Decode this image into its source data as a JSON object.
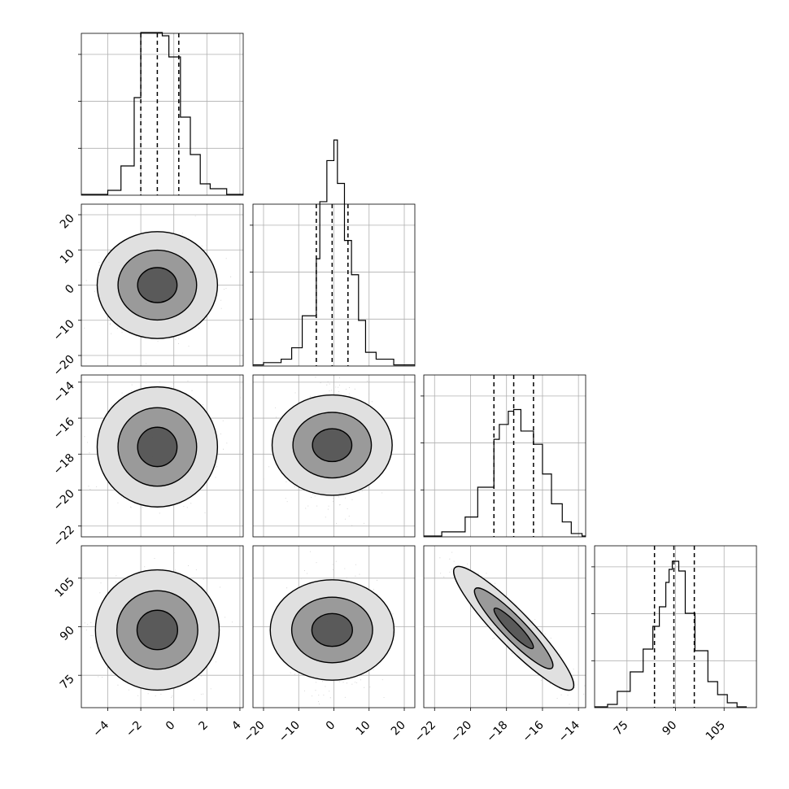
{
  "chart_data": {
    "type": "corner",
    "parameters": [
      {
        "id": "p0",
        "range": [
          -5.6,
          4.2
        ],
        "ticks": [
          -4,
          -2,
          0,
          2,
          4
        ],
        "tick_labels": [
          "−4",
          "−2",
          "0",
          "2",
          "4"
        ],
        "quantiles": [
          -2.0,
          -1.0,
          0.3
        ],
        "hist_scale": 3.1,
        "hist": [
          [
            -5.6,
            0.5
          ],
          [
            -4.0,
            3
          ],
          [
            -3.2,
            18
          ],
          [
            -2.4,
            60
          ],
          [
            -2.0,
            100
          ],
          [
            -1.2,
            100
          ],
          [
            -0.7,
            98
          ],
          [
            -0.3,
            85
          ],
          [
            0.4,
            48
          ],
          [
            1.0,
            25
          ],
          [
            1.6,
            7
          ],
          [
            2.2,
            4
          ],
          [
            3.2,
            0.5
          ],
          [
            4.2,
            0
          ]
        ]
      },
      {
        "id": "p1",
        "range": [
          -23,
          23
        ],
        "ticks": [
          -20,
          -10,
          0,
          10,
          20
        ],
        "tick_labels": [
          "−20",
          "−10",
          "0",
          "10",
          "20"
        ],
        "quantiles": [
          -5.0,
          -0.5,
          4.0
        ],
        "hist_scale": 4.35,
        "hist": [
          [
            -23,
            0.5
          ],
          [
            -20,
            1.5
          ],
          [
            -15,
            3
          ],
          [
            -12,
            8
          ],
          [
            -9,
            22
          ],
          [
            -5,
            47
          ],
          [
            -4,
            72
          ],
          [
            -2,
            90
          ],
          [
            0,
            99
          ],
          [
            1,
            80
          ],
          [
            3,
            55
          ],
          [
            5,
            40
          ],
          [
            7,
            20
          ],
          [
            9,
            6
          ],
          [
            12,
            3
          ],
          [
            17,
            0.5
          ],
          [
            23,
            0
          ]
        ]
      },
      {
        "id": "p2",
        "range": [
          -22.6,
          -13.6
        ],
        "ticks": [
          -22,
          -20,
          -18,
          -16,
          -14
        ],
        "tick_labels": [
          "−22",
          "−20",
          "−18",
          "−16",
          "−14"
        ],
        "quantiles": [
          -18.7,
          -17.6,
          -16.5
        ],
        "hist_scale": 3.15,
        "hist": [
          [
            -22.6,
            0.5
          ],
          [
            -21.6,
            3
          ],
          [
            -20.3,
            12
          ],
          [
            -19.6,
            30
          ],
          [
            -18.7,
            59
          ],
          [
            -18.4,
            68
          ],
          [
            -17.9,
            76
          ],
          [
            -17.6,
            77
          ],
          [
            -17.2,
            64
          ],
          [
            -16.5,
            56
          ],
          [
            -16.0,
            38
          ],
          [
            -15.5,
            20
          ],
          [
            -14.9,
            9
          ],
          [
            -14.4,
            2
          ],
          [
            -13.8,
            0.5
          ],
          [
            -13.6,
            0
          ]
        ]
      },
      {
        "id": "p3",
        "range": [
          65,
          115
        ],
        "ticks": [
          75,
          90,
          105
        ],
        "tick_labels": [
          "75",
          "90",
          "105"
        ],
        "quantiles": [
          83.5,
          89.5,
          95.8
        ],
        "hist_scale": 3.1,
        "hist": [
          [
            65,
            0.5
          ],
          [
            69,
            2
          ],
          [
            72,
            10
          ],
          [
            76,
            22
          ],
          [
            80,
            36
          ],
          [
            83,
            50
          ],
          [
            85,
            62
          ],
          [
            87,
            77
          ],
          [
            88,
            85
          ],
          [
            89,
            90
          ],
          [
            91,
            84
          ],
          [
            93,
            58
          ],
          [
            96,
            35
          ],
          [
            100,
            16
          ],
          [
            103,
            8
          ],
          [
            106,
            3
          ],
          [
            109,
            0.5
          ],
          [
            112,
            0
          ]
        ]
      }
    ],
    "pairs": [
      {
        "row": 1,
        "col": 0,
        "center": [
          -1.0,
          0.0
        ],
        "spread": [
          1.2,
          5.0
        ],
        "corr": 0.0
      },
      {
        "row": 2,
        "col": 0,
        "center": [
          -1.0,
          -17.6
        ],
        "spread": [
          1.2,
          1.1
        ],
        "corr": 0.0
      },
      {
        "row": 2,
        "col": 1,
        "center": [
          -0.5,
          -17.5
        ],
        "spread": [
          4.7,
          1.1
        ],
        "corr": 0.0
      },
      {
        "row": 3,
        "col": 0,
        "center": [
          -1.0,
          89.0
        ],
        "spread": [
          1.2,
          6.3
        ],
        "corr": 0.0
      },
      {
        "row": 3,
        "col": 1,
        "center": [
          -0.5,
          89.0
        ],
        "spread": [
          4.7,
          6.3
        ],
        "corr": 0.0
      },
      {
        "row": 3,
        "col": 2,
        "center": [
          -17.6,
          89.5
        ],
        "spread": [
          1.1,
          6.3
        ],
        "corr": -0.92
      }
    ],
    "contour_levels": [
      0.39,
      0.86,
      0.99
    ],
    "grid": true,
    "line_color": "#000000",
    "point_color": "#bdbdbd"
  }
}
